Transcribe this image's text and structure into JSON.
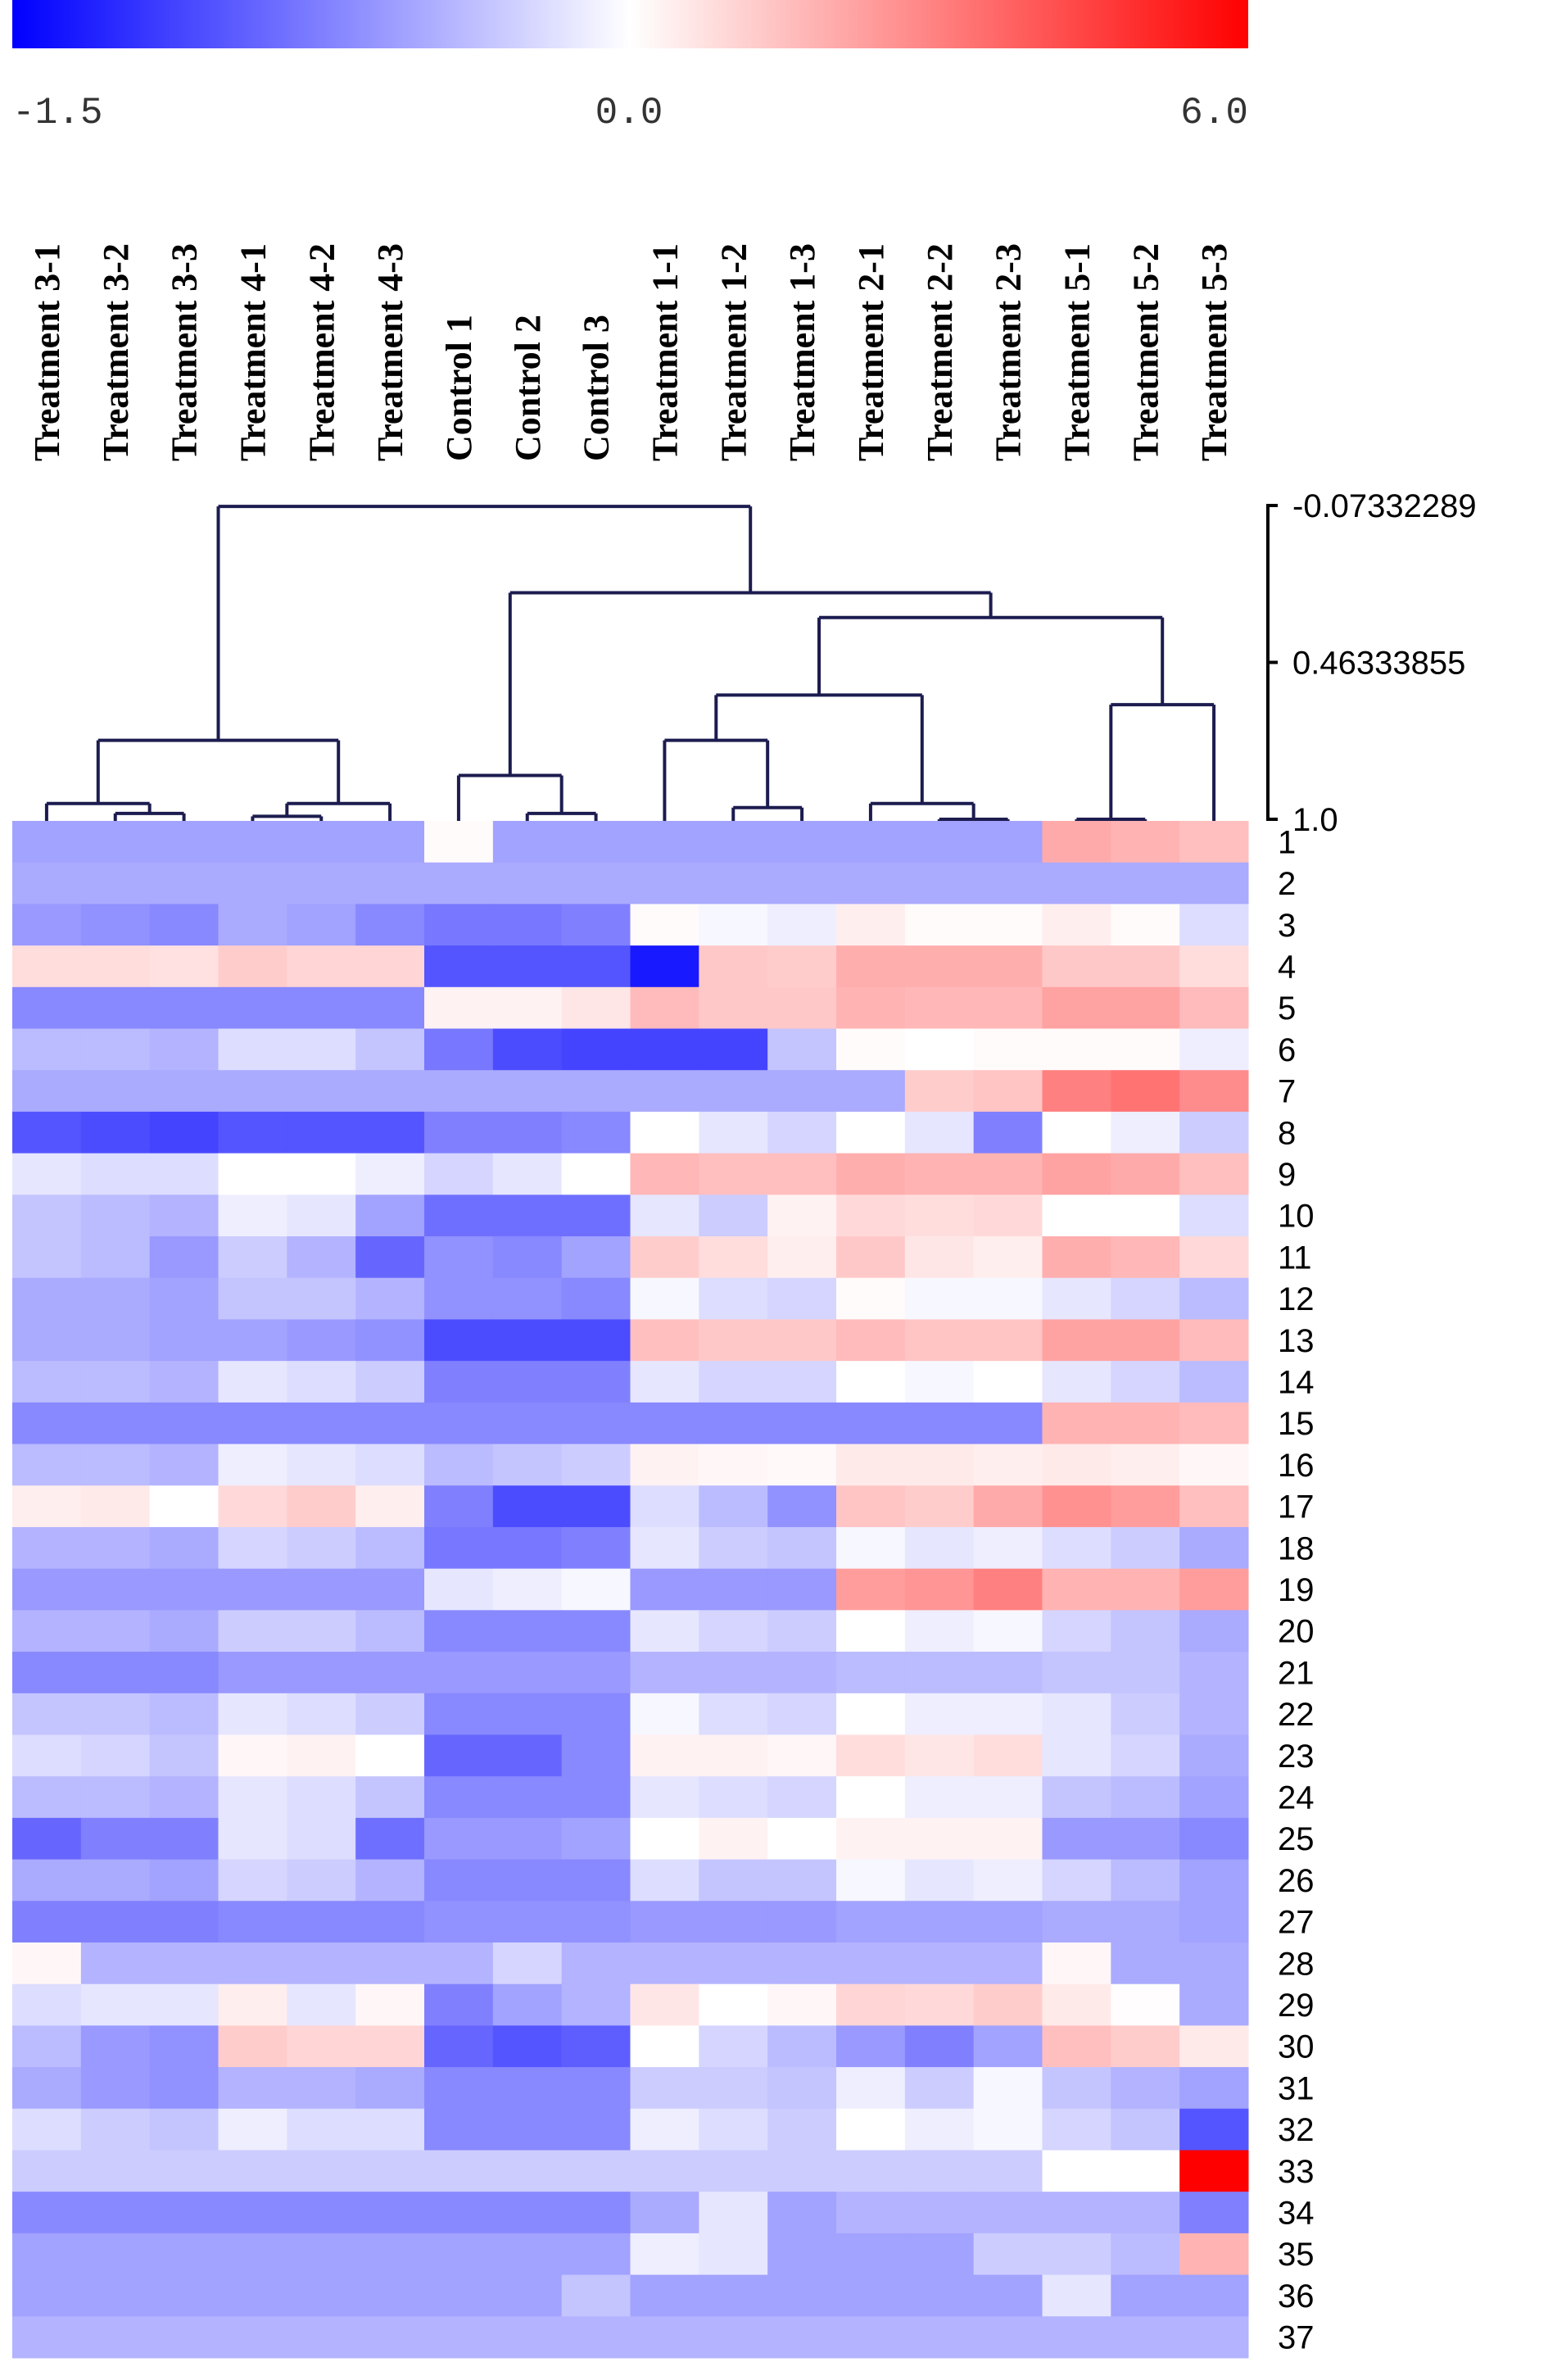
{
  "chart_data": {
    "type": "heatmap",
    "title": "",
    "colorscale": {
      "min": -1.5,
      "mid": 0.0,
      "max": 6.0,
      "min_color": "#0000ff",
      "mid_color": "#ffffff",
      "max_color": "#ff0000",
      "tick_labels": [
        "-1.5",
        "0.0",
        "6.0"
      ]
    },
    "columns": [
      "Treatment 3-1",
      "Treatment 3-2",
      "Treatment 3-3",
      "Treatment 4-1",
      "Treatment 4-2",
      "Treatment 4-3",
      "Control 1",
      "Control 2",
      "Control 3",
      "Treatment 1-1",
      "Treatment 1-2",
      "Treatment 1-3",
      "Treatment 2-1",
      "Treatment 2-2",
      "Treatment 2-3",
      "Treatment 5-1",
      "Treatment 5-2",
      "Treatment 5-3"
    ],
    "rows": [
      "1",
      "2",
      "3",
      "4",
      "5",
      "6",
      "7",
      "8",
      "9",
      "10",
      "11",
      "12",
      "13",
      "14",
      "15",
      "16",
      "17",
      "18",
      "19",
      "20",
      "21",
      "22",
      "23",
      "24",
      "25",
      "26",
      "27",
      "28",
      "29",
      "30",
      "31",
      "32",
      "33",
      "34",
      "35",
      "36",
      "37"
    ],
    "values": [
      [
        -0.55,
        -0.55,
        -0.55,
        -0.55,
        -0.55,
        -0.55,
        0.1,
        -0.55,
        -0.55,
        -0.55,
        -0.55,
        -0.55,
        -0.55,
        -0.55,
        -0.55,
        2.0,
        1.8,
        1.5
      ],
      [
        -0.5,
        -0.5,
        -0.5,
        -0.5,
        -0.5,
        -0.5,
        -0.5,
        -0.5,
        -0.5,
        -0.5,
        -0.5,
        -0.5,
        -0.5,
        -0.5,
        -0.5,
        -0.5,
        -0.5,
        -0.5
      ],
      [
        -0.6,
        -0.65,
        -0.7,
        -0.5,
        -0.55,
        -0.7,
        -0.8,
        -0.8,
        -0.75,
        0.1,
        -0.05,
        -0.1,
        0.4,
        0.1,
        0.1,
        0.4,
        0.1,
        -0.2
      ],
      [
        0.8,
        0.8,
        0.7,
        1.2,
        1.0,
        1.0,
        -1.0,
        -1.0,
        -1.0,
        -1.35,
        1.3,
        1.2,
        1.9,
        1.9,
        1.9,
        1.3,
        1.3,
        0.8
      ],
      [
        -0.7,
        -0.7,
        -0.7,
        -0.7,
        -0.7,
        -0.7,
        0.3,
        0.3,
        0.6,
        1.6,
        1.3,
        1.3,
        1.8,
        1.7,
        1.7,
        2.2,
        2.2,
        1.6
      ],
      [
        -0.4,
        -0.4,
        -0.45,
        -0.2,
        -0.2,
        -0.35,
        -0.8,
        -1.05,
        -1.1,
        -1.1,
        -1.1,
        -0.35,
        0.1,
        0.0,
        0.1,
        0.1,
        0.1,
        -0.1
      ],
      [
        -0.5,
        -0.5,
        -0.5,
        -0.5,
        -0.5,
        -0.5,
        -0.5,
        -0.5,
        -0.5,
        -0.5,
        -0.5,
        -0.5,
        -0.5,
        1.2,
        1.4,
        3.0,
        3.3,
        2.7
      ],
      [
        -1.0,
        -1.05,
        -1.1,
        -1.0,
        -1.0,
        -1.0,
        -0.75,
        -0.75,
        -0.7,
        0.0,
        -0.15,
        -0.25,
        0.0,
        -0.15,
        -0.75,
        0.0,
        -0.1,
        -0.3
      ],
      [
        -0.15,
        -0.2,
        -0.2,
        0.0,
        0.0,
        -0.1,
        -0.25,
        -0.15,
        0.0,
        1.7,
        1.5,
        1.5,
        1.9,
        1.8,
        1.8,
        2.2,
        2.0,
        1.5
      ],
      [
        -0.35,
        -0.4,
        -0.45,
        -0.1,
        -0.15,
        -0.55,
        -0.85,
        -0.85,
        -0.85,
        -0.15,
        -0.3,
        0.3,
        0.9,
        0.8,
        0.9,
        0.0,
        0.0,
        -0.2
      ],
      [
        -0.35,
        -0.4,
        -0.6,
        -0.3,
        -0.45,
        -0.9,
        -0.65,
        -0.7,
        -0.55,
        1.2,
        0.8,
        0.4,
        1.3,
        0.6,
        0.4,
        1.9,
        1.7,
        0.9
      ],
      [
        -0.5,
        -0.5,
        -0.55,
        -0.35,
        -0.35,
        -0.45,
        -0.65,
        -0.65,
        -0.7,
        -0.05,
        -0.2,
        -0.25,
        0.1,
        -0.05,
        -0.05,
        -0.15,
        -0.25,
        -0.4
      ],
      [
        -0.5,
        -0.5,
        -0.55,
        -0.55,
        -0.6,
        -0.65,
        -1.05,
        -1.05,
        -1.05,
        1.5,
        1.3,
        1.3,
        1.6,
        1.4,
        1.4,
        2.2,
        2.2,
        1.6
      ],
      [
        -0.4,
        -0.4,
        -0.45,
        -0.15,
        -0.2,
        -0.3,
        -0.75,
        -0.75,
        -0.75,
        -0.15,
        -0.25,
        -0.25,
        0.0,
        -0.05,
        0.0,
        -0.15,
        -0.25,
        -0.4
      ],
      [
        -0.7,
        -0.7,
        -0.7,
        -0.7,
        -0.7,
        -0.7,
        -0.7,
        -0.7,
        -0.7,
        -0.7,
        -0.7,
        -0.7,
        -0.7,
        -0.7,
        -0.7,
        1.8,
        1.8,
        1.6
      ],
      [
        -0.4,
        -0.4,
        -0.45,
        -0.1,
        -0.15,
        -0.2,
        -0.4,
        -0.35,
        -0.3,
        0.3,
        0.2,
        0.15,
        0.5,
        0.5,
        0.4,
        0.5,
        0.4,
        0.2
      ],
      [
        0.4,
        0.5,
        0.0,
        0.9,
        1.2,
        0.4,
        -0.75,
        -1.05,
        -1.05,
        -0.2,
        -0.4,
        -0.65,
        1.4,
        1.2,
        2.0,
        2.6,
        2.3,
        1.5
      ],
      [
        -0.45,
        -0.45,
        -0.5,
        -0.25,
        -0.3,
        -0.4,
        -0.8,
        -0.8,
        -0.75,
        -0.15,
        -0.3,
        -0.35,
        -0.05,
        -0.15,
        -0.1,
        -0.2,
        -0.3,
        -0.5
      ],
      [
        -0.6,
        -0.6,
        -0.6,
        -0.6,
        -0.6,
        -0.6,
        -0.15,
        -0.1,
        -0.05,
        -0.6,
        -0.6,
        -0.6,
        2.3,
        2.5,
        3.0,
        1.8,
        1.8,
        2.3
      ],
      [
        -0.45,
        -0.45,
        -0.5,
        -0.3,
        -0.3,
        -0.4,
        -0.7,
        -0.7,
        -0.7,
        -0.15,
        -0.25,
        -0.3,
        0.0,
        -0.1,
        -0.05,
        -0.25,
        -0.35,
        -0.5
      ],
      [
        -0.7,
        -0.7,
        -0.7,
        -0.6,
        -0.6,
        -0.6,
        -0.6,
        -0.6,
        -0.6,
        -0.45,
        -0.45,
        -0.45,
        -0.4,
        -0.4,
        -0.4,
        -0.35,
        -0.35,
        -0.45
      ],
      [
        -0.35,
        -0.35,
        -0.4,
        -0.15,
        -0.2,
        -0.3,
        -0.7,
        -0.7,
        -0.7,
        -0.05,
        -0.2,
        -0.25,
        0.0,
        -0.1,
        -0.1,
        -0.15,
        -0.3,
        -0.45
      ],
      [
        -0.2,
        -0.25,
        -0.35,
        0.2,
        0.3,
        0.0,
        -0.9,
        -0.9,
        -0.7,
        0.3,
        0.3,
        0.2,
        0.8,
        0.6,
        0.8,
        -0.15,
        -0.25,
        -0.5
      ],
      [
        -0.4,
        -0.4,
        -0.45,
        -0.15,
        -0.2,
        -0.35,
        -0.7,
        -0.7,
        -0.7,
        -0.15,
        -0.2,
        -0.25,
        0.0,
        -0.1,
        -0.1,
        -0.35,
        -0.4,
        -0.55
      ],
      [
        -0.9,
        -0.75,
        -0.75,
        -0.15,
        -0.2,
        -0.85,
        -0.6,
        -0.6,
        -0.55,
        0.0,
        0.3,
        0.0,
        0.3,
        0.3,
        0.3,
        -0.6,
        -0.6,
        -0.7
      ],
      [
        -0.5,
        -0.5,
        -0.55,
        -0.25,
        -0.3,
        -0.45,
        -0.7,
        -0.7,
        -0.7,
        -0.2,
        -0.35,
        -0.35,
        -0.05,
        -0.15,
        -0.1,
        -0.25,
        -0.4,
        -0.55
      ],
      [
        -0.75,
        -0.75,
        -0.75,
        -0.7,
        -0.7,
        -0.7,
        -0.65,
        -0.65,
        -0.65,
        -0.6,
        -0.6,
        -0.6,
        -0.55,
        -0.55,
        -0.55,
        -0.5,
        -0.5,
        -0.55
      ],
      [
        0.2,
        -0.45,
        -0.45,
        -0.45,
        -0.45,
        -0.45,
        -0.45,
        -0.25,
        -0.45,
        -0.45,
        -0.45,
        -0.45,
        -0.45,
        -0.45,
        -0.45,
        0.2,
        -0.5,
        -0.5
      ],
      [
        -0.2,
        -0.15,
        -0.15,
        0.4,
        -0.15,
        0.2,
        -0.75,
        -0.55,
        -0.45,
        0.6,
        0.0,
        0.2,
        1.0,
        0.9,
        1.2,
        0.5,
        0.05,
        -0.5
      ],
      [
        -0.4,
        -0.6,
        -0.65,
        1.2,
        1.0,
        1.0,
        -0.9,
        -1.0,
        -0.95,
        0.0,
        -0.25,
        -0.4,
        -0.6,
        -0.75,
        -0.55,
        1.5,
        1.2,
        0.5
      ],
      [
        -0.5,
        -0.6,
        -0.65,
        -0.45,
        -0.45,
        -0.5,
        -0.7,
        -0.7,
        -0.7,
        -0.3,
        -0.3,
        -0.35,
        -0.1,
        -0.3,
        -0.05,
        -0.35,
        -0.45,
        -0.55
      ],
      [
        -0.2,
        -0.3,
        -0.35,
        -0.1,
        -0.2,
        -0.2,
        -0.7,
        -0.7,
        -0.7,
        -0.1,
        -0.2,
        -0.3,
        0.0,
        -0.1,
        -0.05,
        -0.25,
        -0.35,
        -1.0
      ],
      [
        -0.3,
        -0.3,
        -0.3,
        -0.3,
        -0.3,
        -0.3,
        -0.3,
        -0.3,
        -0.3,
        -0.3,
        -0.3,
        -0.3,
        -0.3,
        -0.3,
        -0.3,
        0.0,
        0.0,
        6.0
      ],
      [
        -0.7,
        -0.7,
        -0.7,
        -0.7,
        -0.7,
        -0.7,
        -0.7,
        -0.7,
        -0.7,
        -0.5,
        -0.15,
        -0.55,
        -0.45,
        -0.45,
        -0.45,
        -0.45,
        -0.45,
        -0.75
      ],
      [
        -0.55,
        -0.55,
        -0.55,
        -0.55,
        -0.55,
        -0.55,
        -0.55,
        -0.55,
        -0.55,
        -0.1,
        -0.15,
        -0.55,
        -0.55,
        -0.55,
        -0.3,
        -0.3,
        -0.4,
        1.8
      ],
      [
        -0.55,
        -0.55,
        -0.55,
        -0.55,
        -0.55,
        -0.55,
        -0.55,
        -0.55,
        -0.35,
        -0.55,
        -0.55,
        -0.55,
        -0.55,
        -0.55,
        -0.55,
        -0.15,
        -0.55,
        -0.55
      ],
      [
        -0.45,
        -0.45,
        -0.45,
        -0.45,
        -0.45,
        -0.45,
        -0.45,
        -0.45,
        -0.45,
        -0.45,
        -0.45,
        -0.45,
        -0.45,
        -0.45,
        -0.45,
        -0.45,
        -0.45,
        -0.45
      ]
    ],
    "dendrogram_axis": {
      "range": [
        -0.07332289,
        1.0
      ],
      "tick_values": [
        -0.07332289,
        0.46333855,
        1.0
      ],
      "tick_labels": [
        "-0.07332289",
        "0.46333855",
        "1.0"
      ]
    },
    "column_dendrogram": {
      "height": -0.07,
      "children": [
        {
          "height": 0.73,
          "children": [
            {
              "height": 0.946,
              "children": [
                {
                  "leaf": 0
                },
                {
                  "height": 0.98,
                  "children": [
                    {
                      "leaf": 1
                    },
                    {
                      "leaf": 2
                    }
                  ]
                }
              ]
            },
            {
              "height": 0.946,
              "children": [
                {
                  "height": 0.99,
                  "children": [
                    {
                      "leaf": 3
                    },
                    {
                      "leaf": 4
                    }
                  ]
                },
                {
                  "leaf": 5
                }
              ]
            }
          ]
        },
        {
          "height": 0.225,
          "children": [
            {
              "height": 0.85,
              "children": [
                {
                  "leaf": 6
                },
                {
                  "height": 0.98,
                  "children": [
                    {
                      "leaf": 7
                    },
                    {
                      "leaf": 8
                    }
                  ]
                }
              ]
            },
            {
              "height": 0.31,
              "children": [
                {
                  "height": 0.575,
                  "children": [
                    {
                      "height": 0.73,
                      "children": [
                        {
                          "leaf": 9
                        },
                        {
                          "height": 0.96,
                          "children": [
                            {
                              "leaf": 10
                            },
                            {
                              "leaf": 11
                            }
                          ]
                        }
                      ]
                    },
                    {
                      "height": 0.946,
                      "children": [
                        {
                          "leaf": 12
                        },
                        {
                          "height": 1.0,
                          "children": [
                            {
                              "leaf": 13
                            },
                            {
                              "leaf": 14
                            }
                          ]
                        }
                      ]
                    }
                  ]
                },
                {
                  "height": 0.608,
                  "children": [
                    {
                      "height": 1.0,
                      "children": [
                        {
                          "leaf": 15
                        },
                        {
                          "leaf": 16
                        }
                      ]
                    },
                    {
                      "leaf": 17
                    }
                  ]
                }
              ]
            }
          ]
        }
      ]
    },
    "dendrogram_color": "#1c1c50"
  }
}
